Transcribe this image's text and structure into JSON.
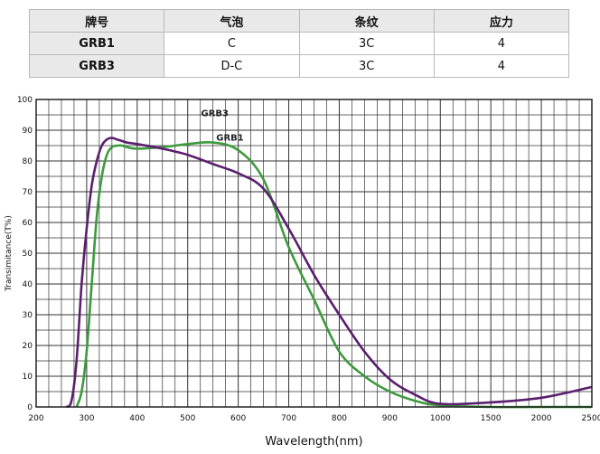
{
  "table": {
    "headers": [
      "牌号",
      "气泡",
      "条纹",
      "应力"
    ],
    "rows": [
      [
        "GRB1",
        "C",
        "3C",
        "4"
      ],
      [
        "GRB3",
        "D-C",
        "3C",
        "4"
      ]
    ]
  },
  "chart_data": {
    "type": "line",
    "xlabel": "Wavelength(nm)",
    "ylabel": "Transimitance(T%)",
    "x_ticks": [
      "200",
      "300",
      "400",
      "500",
      "600",
      "700",
      "800",
      "900",
      "1000",
      "1500",
      "2000",
      "2500"
    ],
    "y_ticks": [
      "0",
      "10",
      "20",
      "30",
      "40",
      "50",
      "60",
      "70",
      "80",
      "90",
      "100"
    ],
    "ylim": [
      0,
      100
    ],
    "grid": true,
    "series": [
      {
        "name": "GRB1",
        "color": "#5a1f6e",
        "x": [
          260,
          270,
          280,
          290,
          300,
          310,
          320,
          330,
          340,
          350,
          360,
          370,
          380,
          400,
          450,
          500,
          550,
          600,
          650,
          700,
          750,
          800,
          850,
          900,
          950,
          1000,
          1500,
          2000,
          2500
        ],
        "y": [
          0,
          2,
          15,
          40,
          58,
          72,
          80,
          85,
          87,
          87.5,
          87,
          86.5,
          86,
          85.5,
          84,
          82,
          79,
          76,
          71,
          58,
          43,
          30,
          18,
          9,
          4,
          1,
          1.5,
          3,
          6.5
        ]
      },
      {
        "name": "GRB3",
        "color": "#3d9a3d",
        "x": [
          280,
          290,
          300,
          310,
          320,
          330,
          340,
          350,
          360,
          370,
          380,
          400,
          450,
          500,
          550,
          600,
          650,
          700,
          750,
          800,
          850,
          900,
          950,
          1000,
          1500,
          2000,
          2500
        ],
        "y": [
          0,
          5,
          18,
          40,
          62,
          75,
          82,
          84.5,
          85,
          85,
          84.5,
          84,
          84.5,
          85.5,
          86,
          83.5,
          74,
          52,
          35,
          18,
          10,
          5,
          2,
          0.5,
          0,
          0,
          0
        ]
      }
    ]
  }
}
